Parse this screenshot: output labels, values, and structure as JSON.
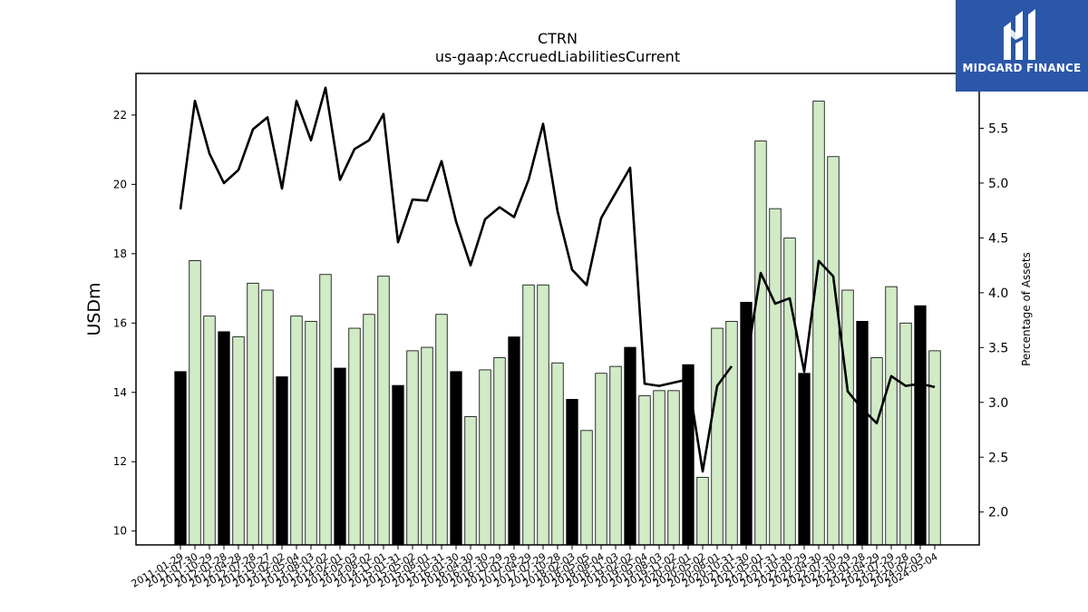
{
  "header": {
    "title": "CTRN",
    "subtitle": "us-gaap:AccruedLiabilitiesCurrent"
  },
  "brand": {
    "name": "MIDGARD FINANCE",
    "icon": "midgard-logo-icon",
    "color": "#2b57a8"
  },
  "colors": {
    "bar_fill": "#d0ebc6",
    "bar_highlight": "#000000",
    "bar_edge": "#000000",
    "line": "#000000"
  },
  "chart_data": {
    "type": "bar",
    "title": "CTRN",
    "subtitle": "us-gaap:AccruedLiabilitiesCurrent",
    "ylabel": "USDm",
    "y2label": "Percentage of Assets",
    "ylim": [
      9.6,
      23.2
    ],
    "y2lim": [
      1.7,
      6.0
    ],
    "yticks": [
      10,
      12,
      14,
      16,
      18,
      20,
      22
    ],
    "y2ticks": [
      2.0,
      2.5,
      3.0,
      3.5,
      4.0,
      4.5,
      5.0,
      5.5
    ],
    "grid": false,
    "categories": [
      "2011-01-29",
      "2011-07-30",
      "2011-10-29",
      "2012-01-28",
      "2012-04-28",
      "2012-07-28",
      "2012-10-27",
      "2013-02-02",
      "2013-05-04",
      "2013-08-03",
      "2013-11-02",
      "2014-02-01",
      "2014-05-03",
      "2014-08-02",
      "2014-11-01",
      "2015-01-31",
      "2015-05-02",
      "2015-08-01",
      "2015-10-31",
      "2016-01-30",
      "2016-04-30",
      "2016-07-30",
      "2016-10-29",
      "2017-01-28",
      "2017-04-29",
      "2017-07-29",
      "2017-10-28",
      "2018-02-03",
      "2018-05-05",
      "2018-08-04",
      "2018-11-03",
      "2019-02-02",
      "2019-05-04",
      "2019-08-03",
      "2019-11-02",
      "2020-02-01",
      "2020-05-02",
      "2020-08-01",
      "2020-10-31",
      "2021-01-30",
      "2021-05-01",
      "2021-07-31",
      "2021-10-30",
      "2022-01-29",
      "2022-04-30",
      "2022-07-30",
      "2022-10-29",
      "2023-01-28",
      "2023-04-29",
      "2023-07-29",
      "2023-10-28",
      "2024-02-03",
      "2024-05-04"
    ],
    "series": [
      {
        "kind": "bar",
        "axis": "left",
        "values": [
          14.6,
          17.8,
          16.2,
          15.75,
          15.6,
          17.15,
          16.95,
          14.45,
          16.2,
          16.05,
          17.4,
          14.7,
          15.85,
          16.25,
          17.35,
          14.2,
          15.2,
          15.3,
          16.25,
          14.6,
          13.3,
          14.65,
          15.0,
          15.6,
          17.1,
          17.1,
          14.85,
          13.8,
          12.9,
          14.55,
          14.75,
          15.3,
          13.9,
          14.05,
          14.05,
          14.8,
          11.55,
          15.85,
          16.05,
          16.6,
          21.25,
          19.3,
          18.45,
          14.55,
          22.4,
          20.8,
          16.95,
          16.05,
          15.0,
          17.05,
          16.0,
          16.5,
          15.2
        ],
        "highlight": [
          true,
          false,
          false,
          true,
          false,
          false,
          false,
          true,
          false,
          false,
          false,
          true,
          false,
          false,
          false,
          true,
          false,
          false,
          false,
          true,
          false,
          false,
          false,
          true,
          false,
          false,
          false,
          true,
          false,
          false,
          false,
          true,
          false,
          false,
          false,
          true,
          false,
          false,
          false,
          true,
          false,
          false,
          false,
          true,
          false,
          false,
          false,
          true,
          false,
          false,
          false,
          true,
          false
        ]
      },
      {
        "kind": "line",
        "axis": "right",
        "values": [
          4.76,
          5.75,
          5.27,
          5.0,
          5.12,
          5.49,
          5.6,
          4.95,
          5.75,
          5.39,
          5.87,
          5.03,
          5.31,
          5.39,
          5.63,
          4.46,
          4.85,
          4.84,
          5.2,
          4.65,
          4.25,
          4.67,
          4.78,
          4.69,
          5.03,
          5.54,
          4.74,
          4.21,
          4.07,
          4.68,
          4.91,
          5.14,
          3.17,
          3.15,
          3.18,
          3.21,
          2.37,
          3.15,
          3.33,
          3.35,
          4.18,
          3.9,
          3.95,
          3.28,
          4.29,
          4.15,
          3.1,
          2.94,
          2.81,
          3.24,
          3.15,
          3.17,
          3.14
        ],
        "gaps": [
          38
        ]
      }
    ]
  }
}
